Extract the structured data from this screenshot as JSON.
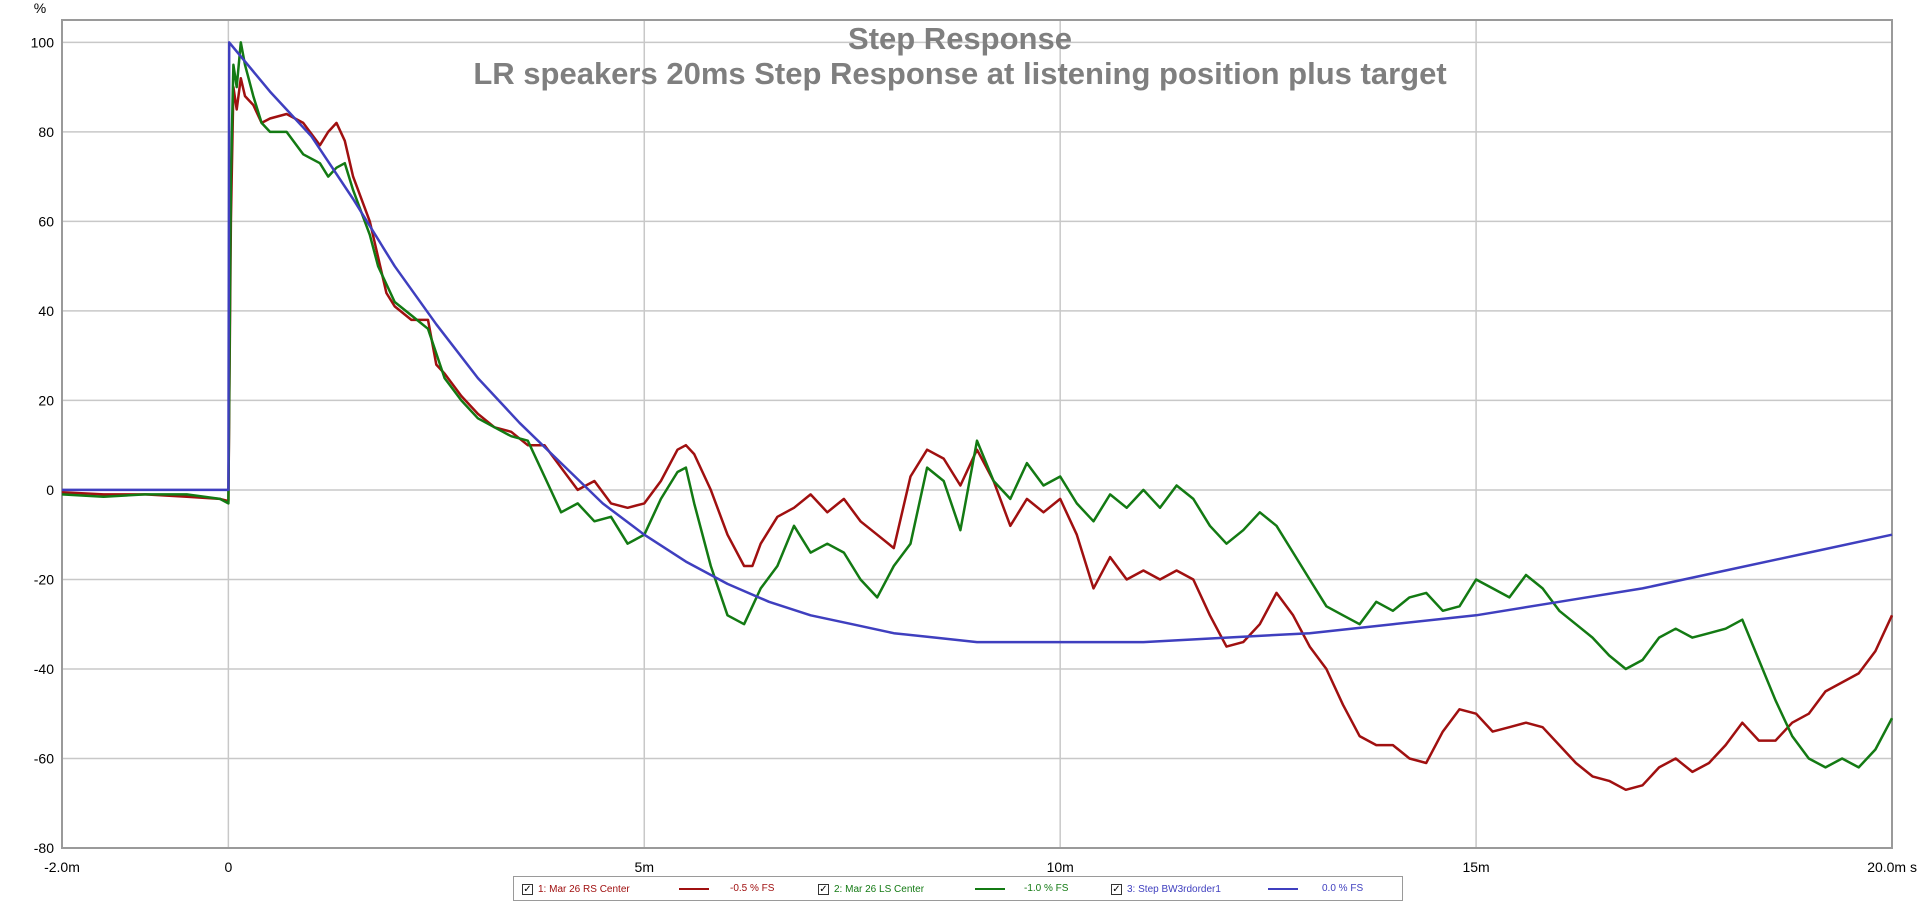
{
  "chart_data": {
    "type": "line",
    "title": "Step Response",
    "subtitle": "LR speakers 20ms Step Response at listening position plus target",
    "y_unit": "%",
    "xlim": [
      -0.002,
      0.02
    ],
    "ylim": [
      -80,
      105
    ],
    "grid": true,
    "legend_position": "bottom-center",
    "x_ticks": [
      {
        "value": -0.002,
        "label": "-2.0m"
      },
      {
        "value": 0,
        "label": "0"
      },
      {
        "value": 0.005,
        "label": "5m"
      },
      {
        "value": 0.01,
        "label": "10m"
      },
      {
        "value": 0.015,
        "label": "15m"
      },
      {
        "value": 0.02,
        "label": "20.0m s"
      }
    ],
    "y_ticks": [
      100,
      80,
      60,
      40,
      20,
      0,
      -20,
      -40,
      -60,
      -80
    ],
    "series": [
      {
        "name": "1: Mar 26 RS Center",
        "offset_label": "-0.5 % FS",
        "color": "#a01010",
        "checked": true,
        "points": [
          [
            -0.002,
            -0.5
          ],
          [
            -0.0015,
            -1
          ],
          [
            -0.001,
            -1
          ],
          [
            -0.0005,
            -1.5
          ],
          [
            -0.0001,
            -2
          ],
          [
            0,
            -2.5
          ],
          [
            3e-05,
            60
          ],
          [
            6e-05,
            90
          ],
          [
            0.0001,
            85
          ],
          [
            0.00015,
            92
          ],
          [
            0.0002,
            88
          ],
          [
            0.0003,
            86
          ],
          [
            0.0004,
            82
          ],
          [
            0.0005,
            83
          ],
          [
            0.0007,
            84
          ],
          [
            0.0009,
            82
          ],
          [
            0.0011,
            77
          ],
          [
            0.0012,
            80
          ],
          [
            0.0013,
            82
          ],
          [
            0.0014,
            78
          ],
          [
            0.0015,
            70
          ],
          [
            0.0017,
            60
          ],
          [
            0.0018,
            52
          ],
          [
            0.0019,
            44
          ],
          [
            0.002,
            41
          ],
          [
            0.0022,
            38
          ],
          [
            0.0024,
            38
          ],
          [
            0.0025,
            28
          ],
          [
            0.0026,
            26
          ],
          [
            0.0028,
            21
          ],
          [
            0.003,
            17
          ],
          [
            0.0032,
            14
          ],
          [
            0.0034,
            13
          ],
          [
            0.0036,
            10
          ],
          [
            0.0038,
            10
          ],
          [
            0.004,
            5
          ],
          [
            0.0042,
            0
          ],
          [
            0.0044,
            2
          ],
          [
            0.0046,
            -3
          ],
          [
            0.0048,
            -4
          ],
          [
            0.005,
            -3
          ],
          [
            0.0052,
            2
          ],
          [
            0.0054,
            9
          ],
          [
            0.0055,
            10
          ],
          [
            0.0056,
            8
          ],
          [
            0.0058,
            0
          ],
          [
            0.006,
            -10
          ],
          [
            0.0062,
            -17
          ],
          [
            0.0063,
            -17
          ],
          [
            0.0064,
            -12
          ],
          [
            0.0066,
            -6
          ],
          [
            0.0068,
            -4
          ],
          [
            0.007,
            -1
          ],
          [
            0.0072,
            -5
          ],
          [
            0.0074,
            -2
          ],
          [
            0.0076,
            -7
          ],
          [
            0.0078,
            -10
          ],
          [
            0.008,
            -13
          ],
          [
            0.0082,
            3
          ],
          [
            0.0084,
            9
          ],
          [
            0.0086,
            7
          ],
          [
            0.0088,
            1
          ],
          [
            0.009,
            9
          ],
          [
            0.0092,
            2
          ],
          [
            0.0094,
            -8
          ],
          [
            0.0096,
            -2
          ],
          [
            0.0098,
            -5
          ],
          [
            0.01,
            -2
          ],
          [
            0.0102,
            -10
          ],
          [
            0.0104,
            -22
          ],
          [
            0.0106,
            -15
          ],
          [
            0.0108,
            -20
          ],
          [
            0.011,
            -18
          ],
          [
            0.0112,
            -20
          ],
          [
            0.0114,
            -18
          ],
          [
            0.0116,
            -20
          ],
          [
            0.0118,
            -28
          ],
          [
            0.012,
            -35
          ],
          [
            0.0122,
            -34
          ],
          [
            0.0124,
            -30
          ],
          [
            0.0126,
            -23
          ],
          [
            0.0128,
            -28
          ],
          [
            0.013,
            -35
          ],
          [
            0.0132,
            -40
          ],
          [
            0.0134,
            -48
          ],
          [
            0.0136,
            -55
          ],
          [
            0.0138,
            -57
          ],
          [
            0.014,
            -57
          ],
          [
            0.0142,
            -60
          ],
          [
            0.0144,
            -61
          ],
          [
            0.0146,
            -54
          ],
          [
            0.0148,
            -49
          ],
          [
            0.015,
            -50
          ],
          [
            0.0152,
            -54
          ],
          [
            0.0154,
            -53
          ],
          [
            0.0156,
            -52
          ],
          [
            0.0158,
            -53
          ],
          [
            0.016,
            -57
          ],
          [
            0.0162,
            -61
          ],
          [
            0.0164,
            -64
          ],
          [
            0.0166,
            -65
          ],
          [
            0.0168,
            -67
          ],
          [
            0.017,
            -66
          ],
          [
            0.0172,
            -62
          ],
          [
            0.0174,
            -60
          ],
          [
            0.0176,
            -63
          ],
          [
            0.0178,
            -61
          ],
          [
            0.018,
            -57
          ],
          [
            0.0182,
            -52
          ],
          [
            0.0184,
            -56
          ],
          [
            0.0186,
            -56
          ],
          [
            0.0188,
            -52
          ],
          [
            0.019,
            -50
          ],
          [
            0.0192,
            -45
          ],
          [
            0.0194,
            -43
          ],
          [
            0.0196,
            -41
          ],
          [
            0.0198,
            -36
          ],
          [
            0.02,
            -28
          ]
        ]
      },
      {
        "name": "2: Mar 26 LS Center",
        "offset_label": "-1.0 % FS",
        "color": "#137a13",
        "checked": true,
        "points": [
          [
            -0.002,
            -1
          ],
          [
            -0.0015,
            -1.5
          ],
          [
            -0.001,
            -1
          ],
          [
            -0.0005,
            -1
          ],
          [
            -0.0001,
            -2
          ],
          [
            0,
            -3
          ],
          [
            3e-05,
            70
          ],
          [
            6e-05,
            95
          ],
          [
            0.0001,
            90
          ],
          [
            0.00015,
            100
          ],
          [
            0.0002,
            95
          ],
          [
            0.0003,
            88
          ],
          [
            0.0004,
            82
          ],
          [
            0.0005,
            80
          ],
          [
            0.0007,
            80
          ],
          [
            0.0009,
            75
          ],
          [
            0.0011,
            73
          ],
          [
            0.0012,
            70
          ],
          [
            0.0013,
            72
          ],
          [
            0.0014,
            73
          ],
          [
            0.0015,
            67
          ],
          [
            0.0017,
            57
          ],
          [
            0.0018,
            50
          ],
          [
            0.0019,
            46
          ],
          [
            0.002,
            42
          ],
          [
            0.0022,
            39
          ],
          [
            0.0024,
            36
          ],
          [
            0.0026,
            25
          ],
          [
            0.0028,
            20
          ],
          [
            0.003,
            16
          ],
          [
            0.0032,
            14
          ],
          [
            0.0034,
            12
          ],
          [
            0.0036,
            11
          ],
          [
            0.0038,
            3
          ],
          [
            0.004,
            -5
          ],
          [
            0.0042,
            -3
          ],
          [
            0.0044,
            -7
          ],
          [
            0.0046,
            -6
          ],
          [
            0.0048,
            -12
          ],
          [
            0.005,
            -10
          ],
          [
            0.0052,
            -2
          ],
          [
            0.0054,
            4
          ],
          [
            0.0055,
            5
          ],
          [
            0.0056,
            -3
          ],
          [
            0.0058,
            -17
          ],
          [
            0.006,
            -28
          ],
          [
            0.0062,
            -30
          ],
          [
            0.0064,
            -22
          ],
          [
            0.0066,
            -17
          ],
          [
            0.0068,
            -8
          ],
          [
            0.007,
            -14
          ],
          [
            0.0072,
            -12
          ],
          [
            0.0074,
            -14
          ],
          [
            0.0076,
            -20
          ],
          [
            0.0078,
            -24
          ],
          [
            0.008,
            -17
          ],
          [
            0.0082,
            -12
          ],
          [
            0.0084,
            5
          ],
          [
            0.0086,
            2
          ],
          [
            0.0088,
            -9
          ],
          [
            0.009,
            11
          ],
          [
            0.0092,
            2
          ],
          [
            0.0094,
            -2
          ],
          [
            0.0096,
            6
          ],
          [
            0.0098,
            1
          ],
          [
            0.01,
            3
          ],
          [
            0.0102,
            -3
          ],
          [
            0.0104,
            -7
          ],
          [
            0.0106,
            -1
          ],
          [
            0.0108,
            -4
          ],
          [
            0.011,
            0
          ],
          [
            0.0112,
            -4
          ],
          [
            0.0114,
            1
          ],
          [
            0.0116,
            -2
          ],
          [
            0.0118,
            -8
          ],
          [
            0.012,
            -12
          ],
          [
            0.0122,
            -9
          ],
          [
            0.0124,
            -5
          ],
          [
            0.0126,
            -8
          ],
          [
            0.0128,
            -14
          ],
          [
            0.013,
            -20
          ],
          [
            0.0132,
            -26
          ],
          [
            0.0134,
            -28
          ],
          [
            0.0136,
            -30
          ],
          [
            0.0138,
            -25
          ],
          [
            0.014,
            -27
          ],
          [
            0.0142,
            -24
          ],
          [
            0.0144,
            -23
          ],
          [
            0.0146,
            -27
          ],
          [
            0.0148,
            -26
          ],
          [
            0.015,
            -20
          ],
          [
            0.0152,
            -22
          ],
          [
            0.0154,
            -24
          ],
          [
            0.0156,
            -19
          ],
          [
            0.0158,
            -22
          ],
          [
            0.016,
            -27
          ],
          [
            0.0162,
            -30
          ],
          [
            0.0164,
            -33
          ],
          [
            0.0166,
            -37
          ],
          [
            0.0168,
            -40
          ],
          [
            0.017,
            -38
          ],
          [
            0.0172,
            -33
          ],
          [
            0.0174,
            -31
          ],
          [
            0.0176,
            -33
          ],
          [
            0.0178,
            -32
          ],
          [
            0.018,
            -31
          ],
          [
            0.0182,
            -29
          ],
          [
            0.0184,
            -38
          ],
          [
            0.0186,
            -47
          ],
          [
            0.0188,
            -55
          ],
          [
            0.019,
            -60
          ],
          [
            0.0192,
            -62
          ],
          [
            0.0194,
            -60
          ],
          [
            0.0196,
            -62
          ],
          [
            0.0198,
            -58
          ],
          [
            0.02,
            -51
          ]
        ]
      },
      {
        "name": "3: Step BW3rdorder1",
        "offset_label": "0.0 % FS",
        "color": "#3f3fbf",
        "checked": true,
        "points": [
          [
            -0.002,
            0
          ],
          [
            -5e-05,
            0
          ],
          [
            0,
            0
          ],
          [
            1e-05,
            100
          ],
          [
            0.0005,
            89
          ],
          [
            0.001,
            79
          ],
          [
            0.0015,
            65
          ],
          [
            0.002,
            50
          ],
          [
            0.0025,
            37
          ],
          [
            0.003,
            25
          ],
          [
            0.0035,
            15
          ],
          [
            0.004,
            6
          ],
          [
            0.0045,
            -3
          ],
          [
            0.005,
            -10
          ],
          [
            0.0055,
            -16
          ],
          [
            0.006,
            -21
          ],
          [
            0.0065,
            -25
          ],
          [
            0.007,
            -28
          ],
          [
            0.0075,
            -30
          ],
          [
            0.008,
            -32
          ],
          [
            0.0085,
            -33
          ],
          [
            0.009,
            -34
          ],
          [
            0.0095,
            -34
          ],
          [
            0.01,
            -34
          ],
          [
            0.011,
            -34
          ],
          [
            0.012,
            -33
          ],
          [
            0.013,
            -32
          ],
          [
            0.014,
            -30
          ],
          [
            0.015,
            -28
          ],
          [
            0.016,
            -25
          ],
          [
            0.017,
            -22
          ],
          [
            0.018,
            -18
          ],
          [
            0.019,
            -14
          ],
          [
            0.02,
            -10
          ]
        ]
      }
    ]
  }
}
